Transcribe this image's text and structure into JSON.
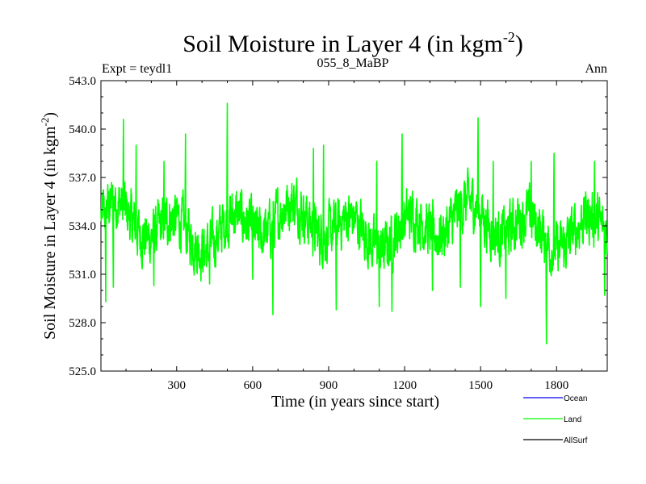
{
  "chart_data": {
    "type": "line",
    "title_main": "Soil Moisture in Layer 4 (in kgm",
    "title_exp": "-2",
    "title_close": ")",
    "header_left": "Expt = teydl1",
    "header_center": "055_8_MaBP",
    "header_right": "Ann",
    "xlabel": "Time (in years since start)",
    "ylabel_main": "Soil Moisture in Layer 4 (in kgm",
    "ylabel_exp": "-2",
    "ylabel_close": ")",
    "xlim": [
      1,
      2000
    ],
    "ylim": [
      525.0,
      543.0
    ],
    "xticks": [
      300,
      600,
      900,
      1200,
      1500,
      1800
    ],
    "xtick_labels": [
      "300",
      "600",
      "900",
      "1200",
      "1500",
      "1800"
    ],
    "yticks": [
      525.0,
      528.0,
      531.0,
      534.0,
      537.0,
      540.0,
      543.0
    ],
    "ytick_labels": [
      "525.0",
      "528.0",
      "531.0",
      "534.0",
      "537.0",
      "540.0",
      "543.0"
    ],
    "series": [
      {
        "name": "Land",
        "color": "#00ff00",
        "mean": 534.0,
        "n_points": 2000,
        "peaks": [
          [
            20,
            529.3
          ],
          [
            50,
            530.2
          ],
          [
            90,
            540.6
          ],
          [
            140,
            539.0
          ],
          [
            210,
            530.3
          ],
          [
            250,
            538.0
          ],
          [
            335,
            539.7
          ],
          [
            430,
            530.4
          ],
          [
            500,
            541.6
          ],
          [
            600,
            530.7
          ],
          [
            680,
            528.5
          ],
          [
            840,
            538.8
          ],
          [
            880,
            539.0
          ],
          [
            930,
            528.8
          ],
          [
            1090,
            538.0
          ],
          [
            1100,
            529.0
          ],
          [
            1150,
            528.7
          ],
          [
            1190,
            539.7
          ],
          [
            1310,
            530.0
          ],
          [
            1420,
            530.2
          ],
          [
            1490,
            540.7
          ],
          [
            1500,
            529.0
          ],
          [
            1550,
            538.0
          ],
          [
            1600,
            529.5
          ],
          [
            1700,
            538.0
          ],
          [
            1760,
            526.7
          ],
          [
            1790,
            538.5
          ],
          [
            1950,
            538.0
          ],
          [
            1990,
            529.7
          ]
        ]
      }
    ],
    "legend": [
      {
        "name": "Ocean",
        "color": "#0000ff"
      },
      {
        "name": "Land",
        "color": "#00ff00"
      },
      {
        "name": "AllSurf",
        "color": "#000000"
      }
    ]
  }
}
